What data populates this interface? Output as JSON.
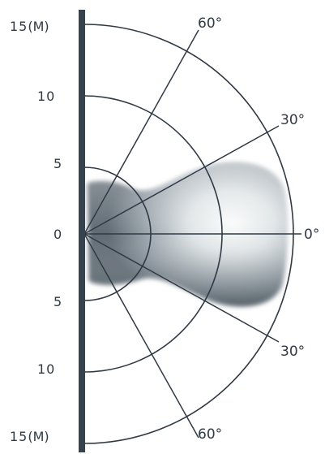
{
  "diagram": {
    "distance_labels": {
      "upper": [
        "15",
        "10",
        "5"
      ],
      "zero": "0",
      "lower": [
        "5",
        "10",
        "15"
      ],
      "unit": "(M)"
    },
    "angle_labels": {
      "upper_60": "60°",
      "upper_30": "30°",
      "center": "0°",
      "lower_30": "30°",
      "lower_60": "60°"
    },
    "colors": {
      "axis_bar": "#36424e",
      "arc_stroke": "#2f3a44",
      "pattern_fill": "#9aa3aa",
      "pattern_highlight": "#f4f6f7"
    },
    "ranges_m": [
      5,
      10,
      15
    ]
  }
}
